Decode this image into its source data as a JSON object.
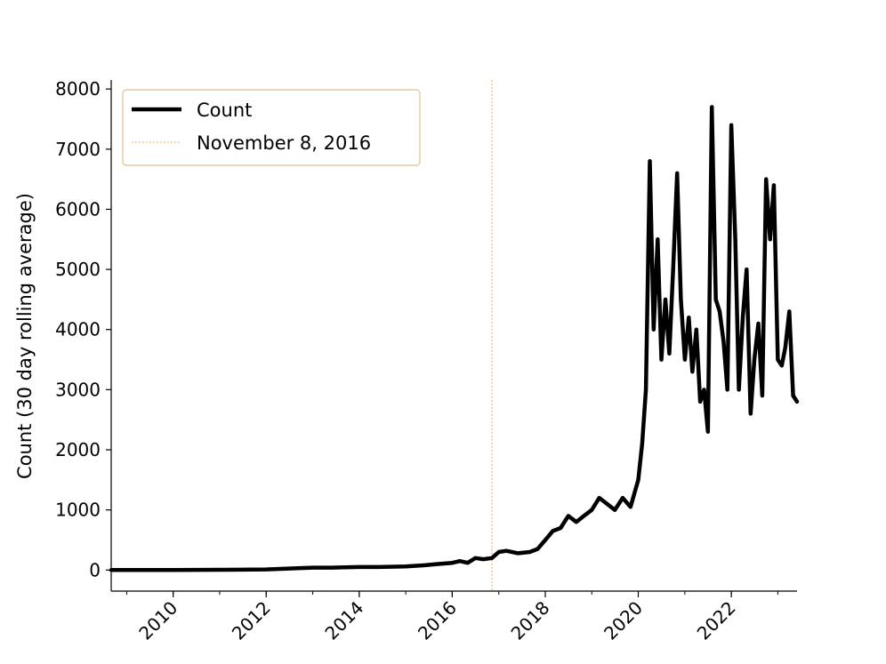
{
  "chart_data": {
    "type": "line",
    "title": "",
    "xlabel": "",
    "ylabel": "Count (30 day rolling average)",
    "xlim": [
      "2008-09-01",
      "2023-06-01"
    ],
    "ylim": [
      -350,
      8150
    ],
    "x_ticks": [
      "2010",
      "2012",
      "2014",
      "2016",
      "2018",
      "2020",
      "2022"
    ],
    "y_ticks": [
      "0",
      "1000",
      "2000",
      "3000",
      "4000",
      "5000",
      "6000",
      "7000",
      "8000"
    ],
    "grid": false,
    "legend": {
      "placement": "top-left",
      "entries": [
        "Count",
        "November 8, 2016"
      ]
    },
    "colors": {
      "count": "#000000",
      "event_line": "#e0a961",
      "legend_border": "#e0c08a"
    },
    "series": [
      {
        "name": "Count",
        "style": "solid",
        "x": [
          "2008-09-01",
          "2009-01-01",
          "2009-03-01",
          "2009-07-01",
          "2010-01-01",
          "2011-01-01",
          "2012-01-01",
          "2012-09-01",
          "2013-01-01",
          "2013-06-01",
          "2014-01-01",
          "2014-06-01",
          "2015-01-01",
          "2015-06-01",
          "2015-09-01",
          "2016-01-01",
          "2016-03-01",
          "2016-05-01",
          "2016-07-01",
          "2016-09-01",
          "2016-11-08",
          "2017-01-01",
          "2017-03-01",
          "2017-06-01",
          "2017-09-01",
          "2017-11-01",
          "2018-01-01",
          "2018-03-01",
          "2018-05-01",
          "2018-07-01",
          "2018-09-01",
          "2018-11-01",
          "2019-01-01",
          "2019-03-01",
          "2019-05-01",
          "2019-07-01",
          "2019-09-01",
          "2019-11-01",
          "2020-01-01",
          "2020-02-01",
          "2020-03-01",
          "2020-04-01",
          "2020-05-01",
          "2020-06-01",
          "2020-07-01",
          "2020-08-01",
          "2020-09-01",
          "2020-10-01",
          "2020-11-01",
          "2020-12-01",
          "2021-01-01",
          "2021-02-01",
          "2021-03-01",
          "2021-04-01",
          "2021-05-01",
          "2021-06-01",
          "2021-07-01",
          "2021-08-01",
          "2021-09-01",
          "2021-10-01",
          "2021-11-01",
          "2021-12-01",
          "2022-01-01",
          "2022-02-01",
          "2022-03-01",
          "2022-04-01",
          "2022-05-01",
          "2022-06-01",
          "2022-07-01",
          "2022-08-01",
          "2022-09-01",
          "2022-10-01",
          "2022-11-01",
          "2022-12-01",
          "2023-01-01",
          "2023-02-01",
          "2023-03-01",
          "2023-04-01",
          "2023-05-01",
          "2023-06-01"
        ],
        "y": [
          0,
          0,
          0,
          0,
          0,
          5,
          10,
          30,
          40,
          40,
          50,
          50,
          60,
          80,
          100,
          120,
          150,
          120,
          200,
          180,
          200,
          300,
          320,
          280,
          300,
          350,
          500,
          650,
          700,
          900,
          800,
          900,
          1000,
          1200,
          1100,
          1000,
          1200,
          1050,
          1500,
          2100,
          3000,
          6800,
          4000,
          5500,
          3500,
          4500,
          3600,
          5000,
          6600,
          4500,
          3500,
          4200,
          3300,
          4000,
          2800,
          3000,
          2300,
          7700,
          4500,
          4300,
          3800,
          3000,
          7400,
          5500,
          3000,
          4200,
          5000,
          2600,
          3500,
          4100,
          2900,
          6500,
          5500,
          6400,
          3500,
          3400,
          3700,
          4300,
          2900,
          2800
        ]
      }
    ],
    "event_marker": {
      "name": "November 8, 2016",
      "x": "2016-11-08",
      "style": "dotted"
    }
  }
}
